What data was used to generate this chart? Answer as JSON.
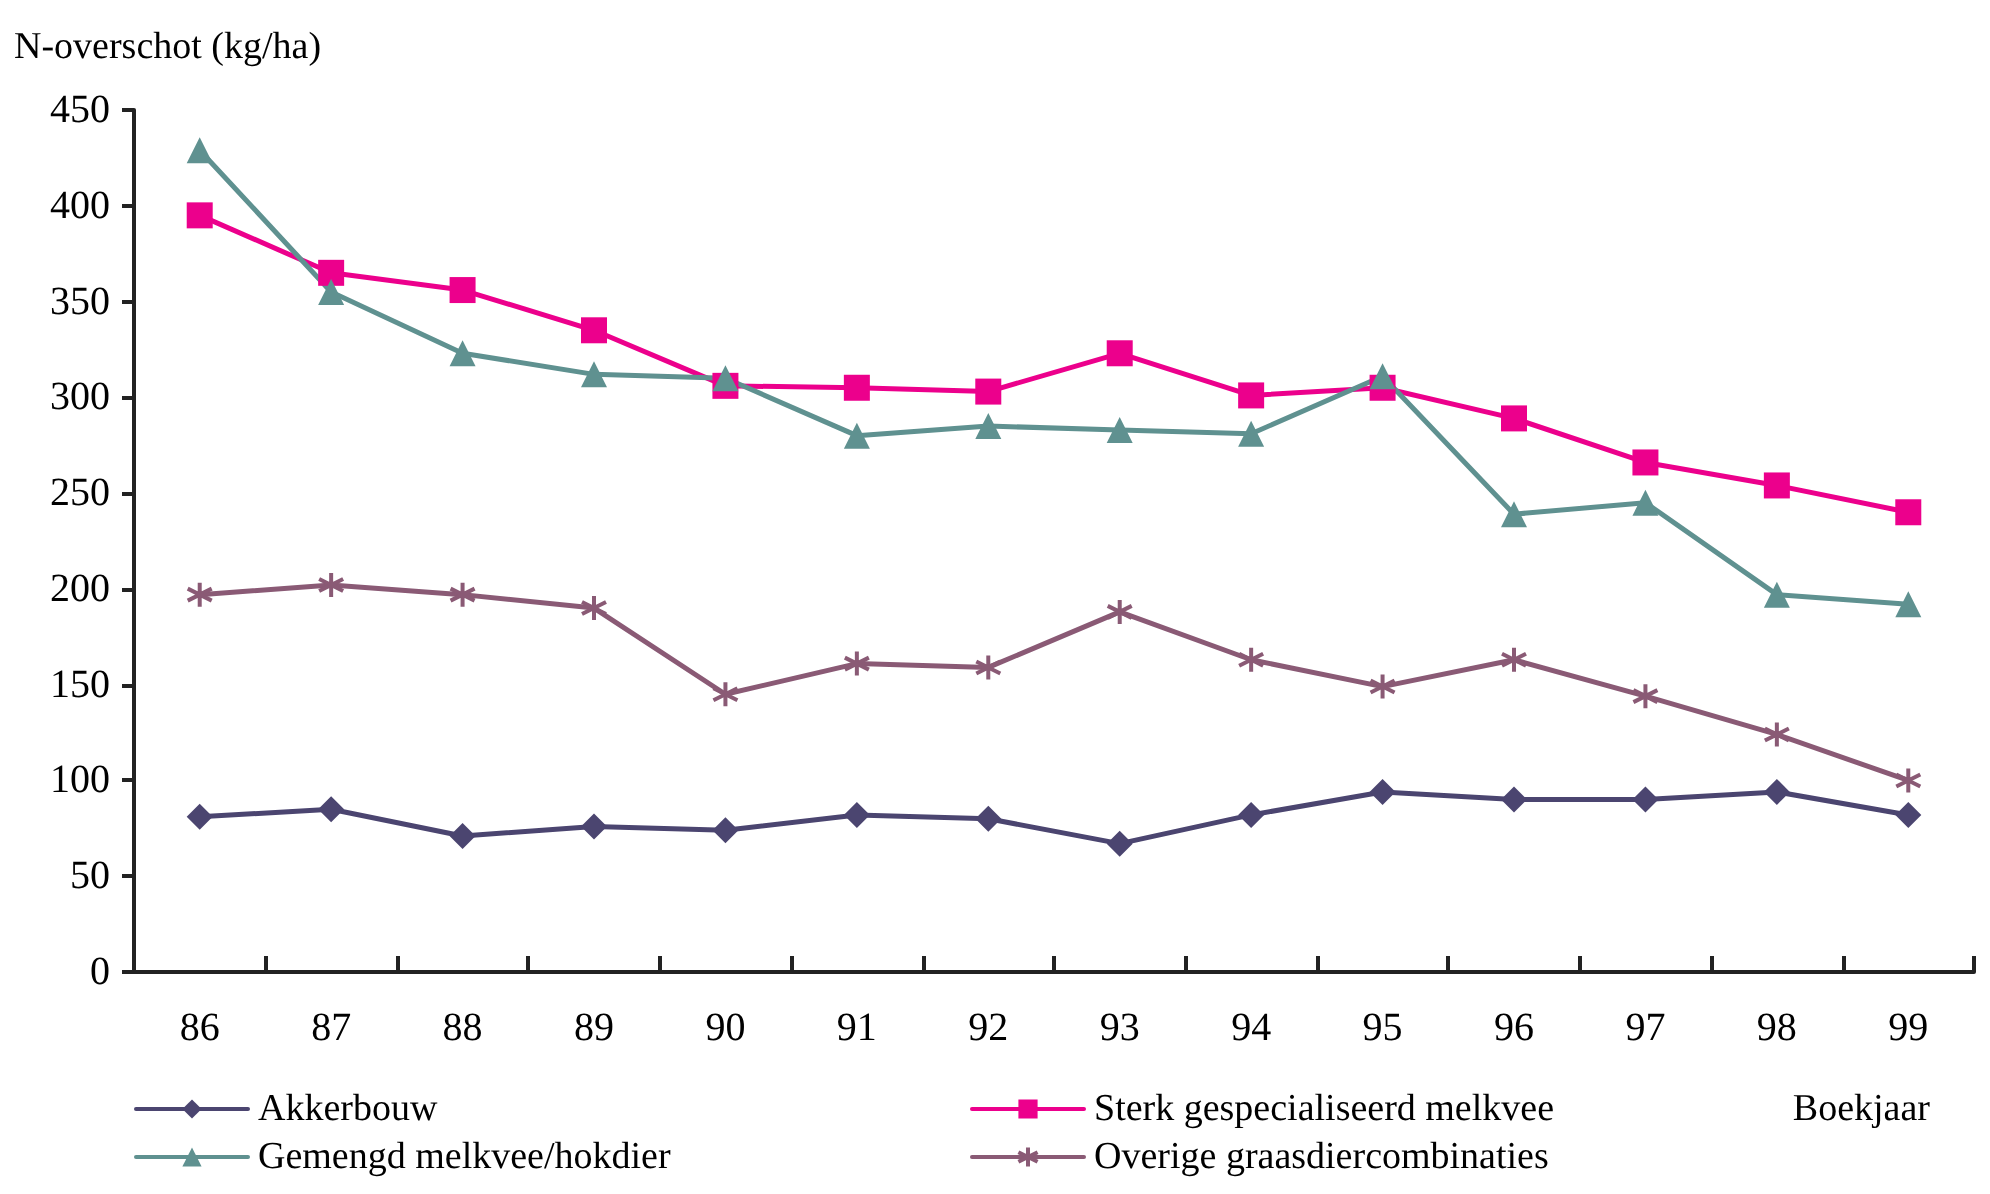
{
  "chart_data": {
    "type": "line",
    "ylabel": "N-overschot (kg/ha)",
    "xlabel": "Boekjaar",
    "categories": [
      "86",
      "87",
      "88",
      "89",
      "90",
      "91",
      "92",
      "93",
      "94",
      "95",
      "96",
      "97",
      "98",
      "99"
    ],
    "ylim": [
      0,
      450
    ],
    "yticks": [
      0,
      50,
      100,
      150,
      200,
      250,
      300,
      350,
      400,
      450
    ],
    "grid": false,
    "legend": "bottom",
    "line_style": "solid",
    "series": [
      {
        "name": "Akkerbouw",
        "color": "#4b4570",
        "marker": "diamond",
        "values": [
          81,
          85,
          71,
          76,
          74,
          82,
          80,
          67,
          82,
          94,
          90,
          90,
          94,
          82
        ]
      },
      {
        "name": "Sterk gespecialiseerd melkvee",
        "color": "#ec008c",
        "marker": "square",
        "values": [
          395,
          365,
          356,
          335,
          306,
          305,
          303,
          323,
          301,
          305,
          289,
          266,
          254,
          240
        ]
      },
      {
        "name": "Gemengd melkvee/hokdier",
        "color": "#5f9190",
        "marker": "triangle",
        "values": [
          429,
          355,
          323,
          312,
          310,
          280,
          285,
          283,
          281,
          311,
          239,
          245,
          197,
          192
        ]
      },
      {
        "name": "Overige graasdiercombinaties",
        "color": "#8a5a75",
        "marker": "cross",
        "values": [
          197,
          202,
          197,
          190,
          145,
          161,
          159,
          188,
          163,
          149,
          163,
          144,
          124,
          100
        ]
      }
    ]
  }
}
